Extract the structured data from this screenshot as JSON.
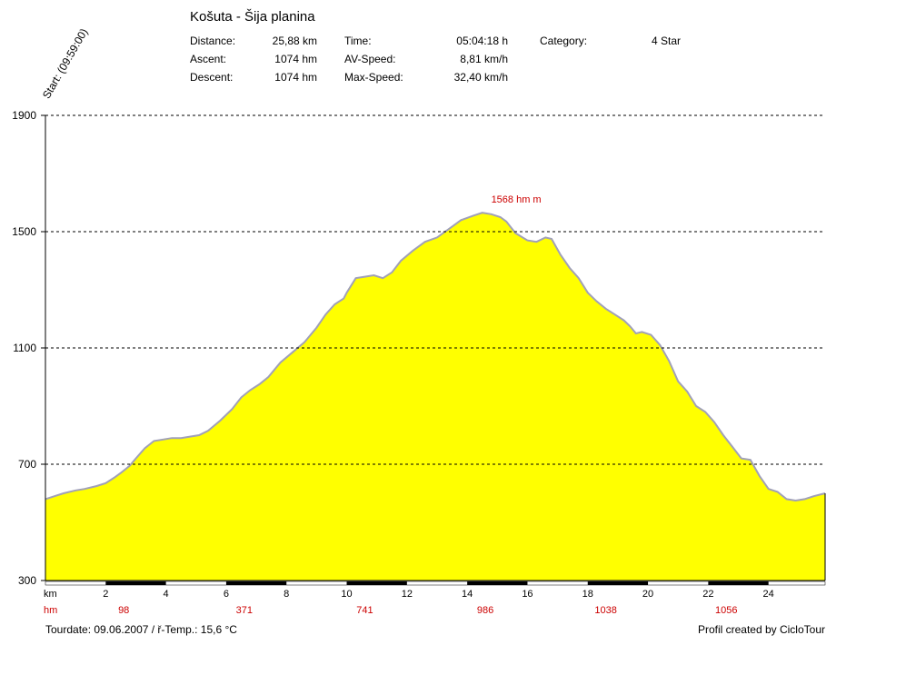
{
  "header": {
    "title": "Košuta - Šija planina",
    "distance_label": "Distance:",
    "distance_value": "25,88 km",
    "ascent_label": "Ascent:",
    "ascent_value": "1074 hm",
    "descent_label": "Descent:",
    "descent_value": "1074 hm",
    "time_label": "Time:",
    "time_value": "05:04:18 h",
    "avspeed_label": "AV-Speed:",
    "avspeed_value": "8,81 km/h",
    "maxspeed_label": "Max-Speed:",
    "maxspeed_value": "32,40 km/h",
    "category_label": "Category:",
    "category_value": "4 Star",
    "start_label": "Start: (09:59:00)"
  },
  "footer": {
    "tourdate": "Tourdate: 09.06.2007  /  ř-Temp.: 15,6 °C",
    "credit": "Profil created by CicloTour"
  },
  "chart_data": {
    "type": "area",
    "title": "",
    "xlabel": "km",
    "ylabel": "",
    "xlim": [
      0,
      25.88
    ],
    "ylim": [
      300,
      1900
    ],
    "y_ticks": [
      300,
      700,
      1100,
      1500,
      1900
    ],
    "x_ticks": [
      2,
      4,
      6,
      8,
      10,
      12,
      14,
      16,
      18,
      20,
      22,
      24
    ],
    "grid": "horizontal dashed",
    "fill_color": "#ffff00",
    "line_color": "#a0a0b8",
    "peak_label": "1568 hm m",
    "peak_x": 14.3,
    "peak_y": 1568,
    "hm_row_label": "hm",
    "hm_ticks": [
      {
        "x": 2.6,
        "label": "98"
      },
      {
        "x": 6.6,
        "label": "371"
      },
      {
        "x": 10.6,
        "label": "741"
      },
      {
        "x": 14.6,
        "label": "986"
      },
      {
        "x": 18.6,
        "label": "1038"
      },
      {
        "x": 22.6,
        "label": "1056"
      }
    ],
    "series": [
      {
        "x": [
          0,
          0.3,
          0.6,
          1,
          1.3,
          1.7,
          2,
          2.3,
          2.5,
          2.8,
          3,
          3.3,
          3.6,
          3.9,
          4.2,
          4.5,
          4.8,
          5.1,
          5.4,
          5.8,
          6.2,
          6.5,
          6.8,
          7.1,
          7.4,
          7.8,
          8.2,
          8.6,
          9,
          9.3,
          9.6,
          9.9,
          10,
          10.3,
          10.6,
          10.9,
          11.2,
          11.5,
          11.8,
          12.2,
          12.6,
          13,
          13.4,
          13.8,
          14.2,
          14.5,
          14.8,
          15.1,
          15.3,
          15.6,
          16,
          16.3,
          16.6,
          16.8,
          17.1,
          17.4,
          17.7,
          18,
          18.3,
          18.6,
          18.9,
          19.2,
          19.4,
          19.6,
          19.8,
          20.1,
          20.4,
          20.7,
          21,
          21.3,
          21.6,
          21.9,
          22.2,
          22.5,
          22.8,
          23.1,
          23.4,
          23.7,
          24,
          24.3,
          24.6,
          24.9,
          25.2,
          25.5,
          25.88
        ],
        "y": [
          580,
          590,
          600,
          610,
          615,
          625,
          635,
          655,
          670,
          695,
          720,
          755,
          780,
          785,
          790,
          790,
          795,
          800,
          815,
          850,
          890,
          930,
          955,
          975,
          1000,
          1050,
          1085,
          1120,
          1170,
          1215,
          1250,
          1270,
          1290,
          1340,
          1345,
          1350,
          1340,
          1360,
          1400,
          1435,
          1465,
          1480,
          1510,
          1540,
          1555,
          1565,
          1560,
          1550,
          1535,
          1495,
          1470,
          1465,
          1480,
          1475,
          1420,
          1375,
          1340,
          1290,
          1260,
          1235,
          1215,
          1195,
          1175,
          1150,
          1155,
          1145,
          1110,
          1055,
          985,
          950,
          900,
          880,
          845,
          800,
          760,
          720,
          715,
          660,
          615,
          605,
          580,
          575,
          580,
          590,
          600
        ]
      }
    ]
  }
}
